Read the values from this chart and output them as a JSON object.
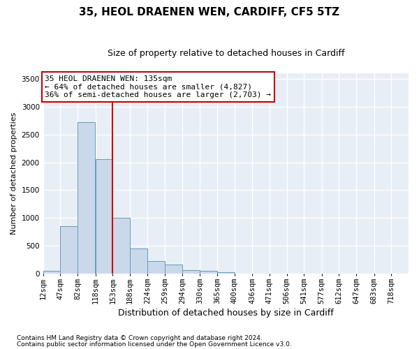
{
  "title": "35, HEOL DRAENEN WEN, CARDIFF, CF5 5TZ",
  "subtitle": "Size of property relative to detached houses in Cardiff",
  "xlabel": "Distribution of detached houses by size in Cardiff",
  "ylabel": "Number of detached properties",
  "footnote1": "Contains HM Land Registry data © Crown copyright and database right 2024.",
  "footnote2": "Contains public sector information licensed under the Open Government Licence v3.0.",
  "annotation_line1": "35 HEOL DRAENEN WEN: 135sqm",
  "annotation_line2": "← 64% of detached houses are smaller (4,827)",
  "annotation_line3": "36% of semi-detached houses are larger (2,703) →",
  "bar_color": "#c9d9ea",
  "bar_edge_color": "#6699bb",
  "vline_color": "#cc0000",
  "categories": [
    "12sqm",
    "47sqm",
    "82sqm",
    "118sqm",
    "153sqm",
    "188sqm",
    "224sqm",
    "259sqm",
    "294sqm",
    "330sqm",
    "365sqm",
    "400sqm",
    "436sqm",
    "471sqm",
    "506sqm",
    "541sqm",
    "577sqm",
    "612sqm",
    "647sqm",
    "683sqm",
    "718sqm"
  ],
  "bin_edges": [
    12,
    47,
    82,
    118,
    153,
    188,
    224,
    259,
    294,
    330,
    365,
    400,
    436,
    471,
    506,
    541,
    577,
    612,
    647,
    683,
    718
  ],
  "values": [
    55,
    850,
    2720,
    2060,
    1000,
    450,
    230,
    160,
    65,
    50,
    30,
    0,
    0,
    0,
    0,
    0,
    0,
    0,
    0,
    0
  ],
  "vline_x": 153,
  "ylim": [
    0,
    3600
  ],
  "yticks": [
    0,
    500,
    1000,
    1500,
    2000,
    2500,
    3000,
    3500
  ],
  "background_color": "#e8eef5",
  "grid_color": "#ffffff",
  "title_fontsize": 11,
  "subtitle_fontsize": 9,
  "annotation_fontsize": 8,
  "ylabel_fontsize": 8,
  "xlabel_fontsize": 9,
  "tick_fontsize": 7.5,
  "footnote_fontsize": 6.5
}
